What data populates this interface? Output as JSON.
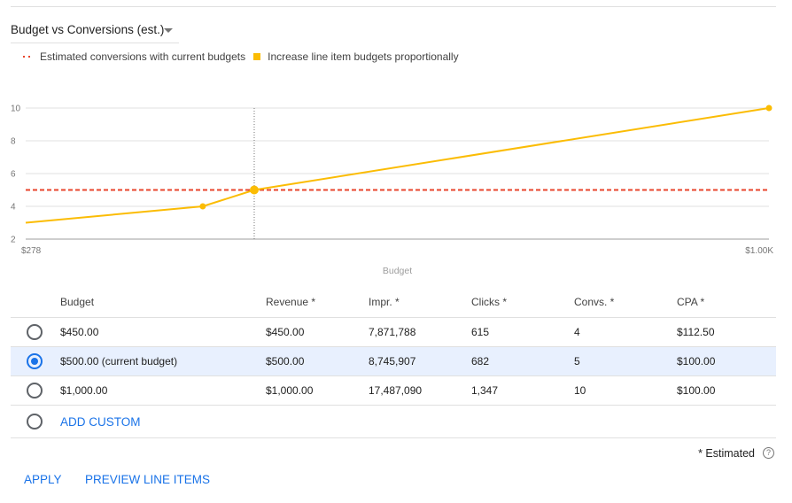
{
  "selector": {
    "label": "Budget vs Conversions (est.)"
  },
  "legend": {
    "dashed_label": "Estimated conversions with current budgets",
    "square_label": "Increase line item budgets proportionally"
  },
  "chart_data": {
    "type": "line",
    "xlabel": "Budget",
    "x_tick_labels": [
      "$278",
      "$1.00K"
    ],
    "xlim": [
      278,
      1000
    ],
    "y_ticks": [
      "10",
      "8",
      "6",
      "4",
      "2"
    ],
    "ylim": [
      2,
      10
    ],
    "series": [
      {
        "name": "Increase line item budgets proportionally",
        "color": "#fbbc04",
        "x": [
          278,
          450,
          500,
          1000
        ],
        "y": [
          3,
          4,
          5,
          10
        ]
      },
      {
        "name": "Estimated conversions with current budgets",
        "color": "#e8452c",
        "style": "dashed",
        "y_constant": 5
      }
    ],
    "highlight_x": 500,
    "grid": true
  },
  "table": {
    "headers": [
      "Budget",
      "Revenue *",
      "Impr. *",
      "Clicks *",
      "Convs. *",
      "CPA *"
    ],
    "rows": [
      {
        "budget": "$450.00",
        "revenue": "$450.00",
        "impr": "7,871,788",
        "clicks": "615",
        "convs": "4",
        "cpa": "$112.50"
      },
      {
        "budget": "$500.00 (current budget)",
        "revenue": "$500.00",
        "impr": "8,745,907",
        "clicks": "682",
        "convs": "5",
        "cpa": "$100.00"
      },
      {
        "budget": "$1,000.00",
        "revenue": "$1,000.00",
        "impr": "17,487,090",
        "clicks": "1,347",
        "convs": "10",
        "cpa": "$100.00"
      }
    ],
    "add_custom": "ADD CUSTOM"
  },
  "footer": {
    "estimated": "* Estimated",
    "help_glyph": "?",
    "apply": "APPLY",
    "preview": "PREVIEW LINE ITEMS"
  }
}
